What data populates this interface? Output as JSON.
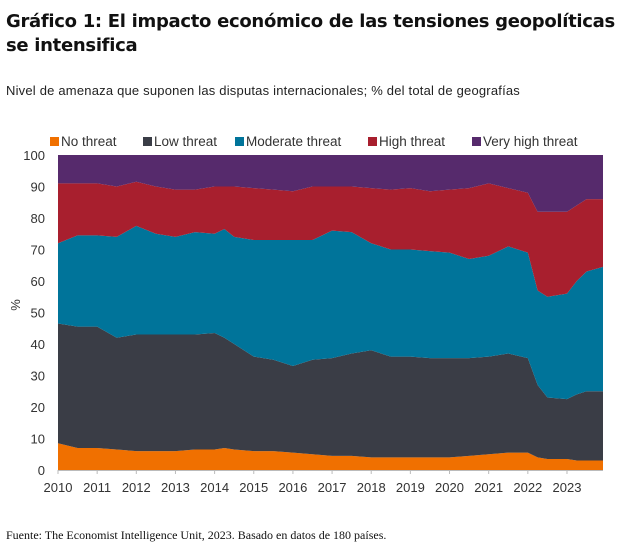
{
  "title": "Gráfico 1: El impacto económico de las tensiones geopolíticas se intensifica",
  "subtitle": "Nivel de amenaza que suponen las disputas internacionales; % del total de geografías",
  "footer": "Fuente: The Economist Intelligence Unit, 2023. Basado en datos de 180 países.",
  "chart_data": {
    "type": "area",
    "stacked": true,
    "title": "",
    "xlabel": "",
    "ylabel": "%",
    "xlim": [
      2010,
      2023.92
    ],
    "ylim": [
      0,
      100
    ],
    "x_ticks": [
      "2010",
      "2011",
      "2012",
      "2013",
      "2014",
      "2015",
      "2016",
      "2017",
      "2018",
      "2019",
      "2020",
      "2021",
      "2022",
      "2023"
    ],
    "y_ticks": [
      "0",
      "10",
      "20",
      "30",
      "40",
      "50",
      "60",
      "70",
      "80",
      "90",
      "100"
    ],
    "legend_position": "top",
    "x": [
      2010.0,
      2010.5,
      2011.0,
      2011.5,
      2012.0,
      2012.5,
      2013.0,
      2013.5,
      2014.0,
      2014.25,
      2014.5,
      2015.0,
      2015.5,
      2016.0,
      2016.5,
      2017.0,
      2017.5,
      2018.0,
      2018.5,
      2019.0,
      2019.5,
      2020.0,
      2020.5,
      2021.0,
      2021.5,
      2022.0,
      2022.25,
      2022.5,
      2023.0,
      2023.25,
      2023.5,
      2023.92
    ],
    "series": [
      {
        "name": "No threat",
        "color": "#f07000",
        "values": [
          8.5,
          7,
          7,
          6.5,
          6,
          6,
          6,
          6.5,
          6.5,
          7,
          6.5,
          6,
          6,
          5.5,
          5,
          4.5,
          4.5,
          4,
          4,
          4,
          4,
          4,
          4.5,
          5,
          5.5,
          5.5,
          4,
          3.5,
          3.5,
          3,
          3,
          3
        ]
      },
      {
        "name": "Low threat",
        "color": "#3a3d46",
        "values": [
          38,
          38.5,
          38.5,
          35.5,
          37,
          37,
          37,
          36.5,
          37,
          35,
          33.5,
          30,
          29,
          27.5,
          30,
          31,
          32.5,
          34,
          32,
          32,
          31.5,
          31.5,
          31,
          31,
          31.5,
          30,
          23,
          19.5,
          19,
          21,
          22,
          22
        ]
      },
      {
        "name": "Moderate threat",
        "color": "#00749a",
        "values": [
          25.5,
          29,
          29,
          32,
          34.5,
          32,
          31,
          32.5,
          31.5,
          34.5,
          34,
          37,
          38,
          40,
          38,
          40.5,
          38.5,
          34,
          34,
          34,
          34,
          33.5,
          31.5,
          32,
          34,
          33.5,
          30,
          32,
          33.5,
          36,
          38,
          39.5
        ]
      },
      {
        "name": "High threat",
        "color": "#a81f2e",
        "values": [
          19,
          16.5,
          16.5,
          16,
          14,
          15,
          15,
          13.5,
          15,
          13.5,
          16,
          16.5,
          16,
          15.5,
          17,
          14,
          14.5,
          17.5,
          19,
          19.5,
          19,
          20,
          22.5,
          23,
          18.5,
          19,
          25,
          27,
          26,
          24,
          23,
          21.5
        ]
      },
      {
        "name": "Very high threat",
        "color": "#562a6c",
        "values": [
          9,
          9,
          9,
          10,
          8.5,
          10,
          11,
          11,
          10,
          10,
          10,
          10.5,
          11,
          11.5,
          10,
          10,
          10,
          10.5,
          11,
          10.5,
          11.5,
          11,
          10.5,
          9,
          10.5,
          12,
          18,
          18,
          18,
          16,
          14,
          14
        ]
      }
    ]
  }
}
